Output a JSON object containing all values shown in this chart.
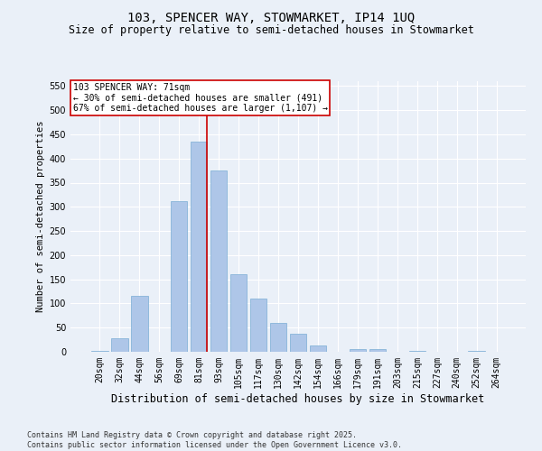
{
  "title": "103, SPENCER WAY, STOWMARKET, IP14 1UQ",
  "subtitle": "Size of property relative to semi-detached houses in Stowmarket",
  "xlabel": "Distribution of semi-detached houses by size in Stowmarket",
  "ylabel": "Number of semi-detached properties",
  "categories": [
    "20sqm",
    "32sqm",
    "44sqm",
    "56sqm",
    "69sqm",
    "81sqm",
    "93sqm",
    "105sqm",
    "117sqm",
    "130sqm",
    "142sqm",
    "154sqm",
    "166sqm",
    "179sqm",
    "191sqm",
    "203sqm",
    "215sqm",
    "227sqm",
    "240sqm",
    "252sqm",
    "264sqm"
  ],
  "values": [
    2,
    28,
    115,
    0,
    312,
    435,
    375,
    160,
    110,
    60,
    38,
    13,
    0,
    5,
    5,
    0,
    2,
    0,
    0,
    2,
    0
  ],
  "bar_color": "#aec6e8",
  "bar_edgecolor": "#7aadd4",
  "background_color": "#eaf0f8",
  "grid_color": "#ffffff",
  "vline_x_index": 5,
  "vline_color": "#cc0000",
  "annotation_text": "103 SPENCER WAY: 71sqm\n← 30% of semi-detached houses are smaller (491)\n67% of semi-detached houses are larger (1,107) →",
  "annotation_box_color": "#ffffff",
  "annotation_box_edgecolor": "#cc0000",
  "ylim": [
    0,
    560
  ],
  "yticks": [
    0,
    50,
    100,
    150,
    200,
    250,
    300,
    350,
    400,
    450,
    500,
    550
  ],
  "footnote": "Contains HM Land Registry data © Crown copyright and database right 2025.\nContains public sector information licensed under the Open Government Licence v3.0.",
  "title_fontsize": 10,
  "subtitle_fontsize": 8.5,
  "xlabel_fontsize": 8.5,
  "ylabel_fontsize": 7.5,
  "tick_fontsize": 7,
  "annotation_fontsize": 7,
  "footnote_fontsize": 6
}
